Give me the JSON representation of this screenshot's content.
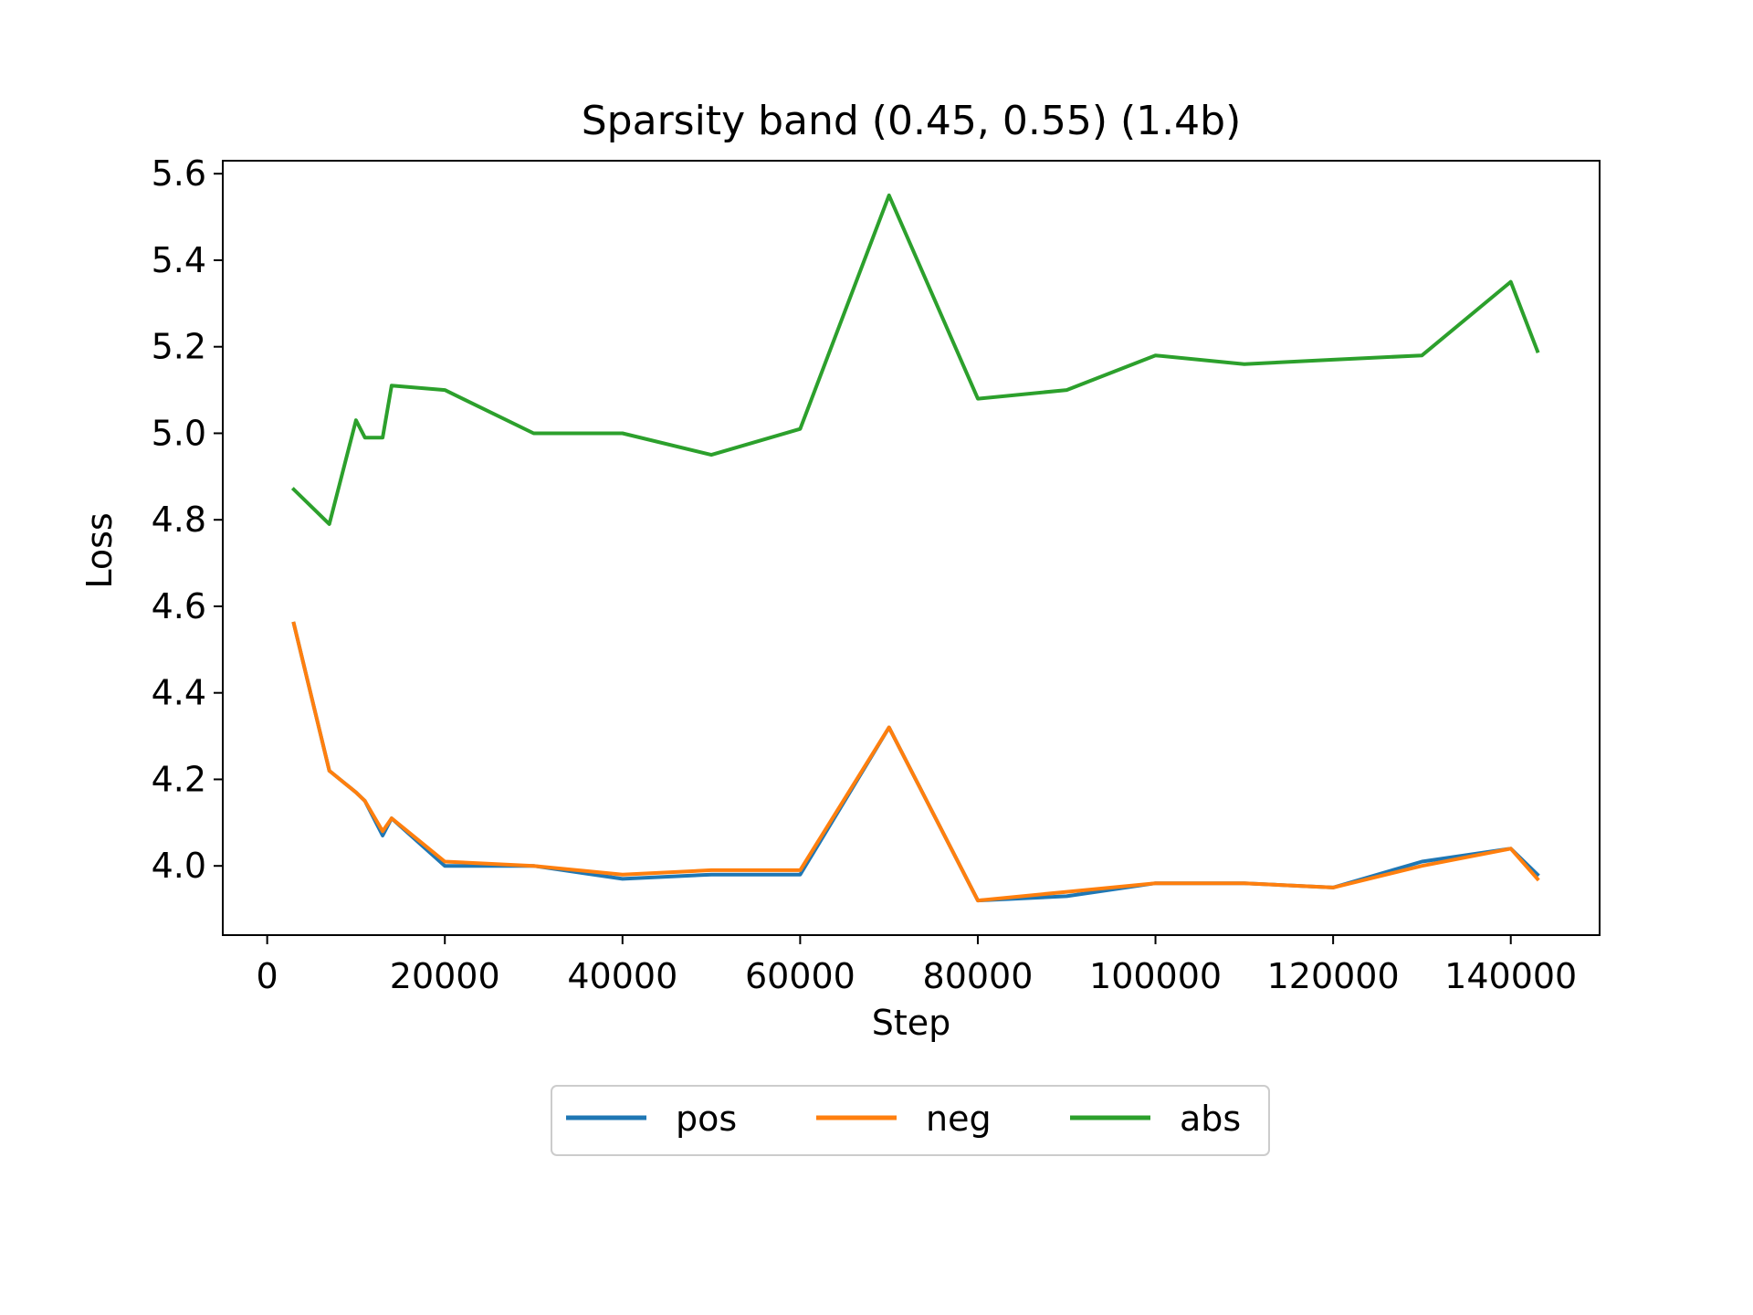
{
  "chart_data": {
    "type": "line",
    "title": "Sparsity band (0.45, 0.55) (1.4b)",
    "xlabel": "Step",
    "ylabel": "Loss",
    "xlim": [
      -5000,
      150000
    ],
    "ylim": [
      3.84,
      5.63
    ],
    "xticks": [
      0,
      20000,
      40000,
      60000,
      80000,
      100000,
      120000,
      140000
    ],
    "xtick_labels": [
      "0",
      "20000",
      "40000",
      "60000",
      "80000",
      "100000",
      "120000",
      "140000"
    ],
    "yticks": [
      4.0,
      4.2,
      4.4,
      4.6,
      4.8,
      5.0,
      5.2,
      5.4,
      5.6
    ],
    "ytick_labels": [
      "4.0",
      "4.2",
      "4.4",
      "4.6",
      "4.8",
      "5.0",
      "5.2",
      "5.4",
      "5.6"
    ],
    "grid": false,
    "legend_position": "bottom-center",
    "x": [
      3000,
      7000,
      10000,
      11000,
      13000,
      14000,
      20000,
      30000,
      40000,
      50000,
      60000,
      70000,
      80000,
      90000,
      100000,
      110000,
      120000,
      130000,
      140000,
      143000
    ],
    "series": [
      {
        "name": "pos",
        "color": "#1f77b4",
        "values": [
          4.56,
          4.22,
          4.17,
          4.15,
          4.07,
          4.11,
          4.0,
          4.0,
          3.97,
          3.98,
          3.98,
          4.32,
          3.92,
          3.93,
          3.96,
          3.96,
          3.95,
          4.01,
          4.04,
          3.98
        ]
      },
      {
        "name": "neg",
        "color": "#ff7f0e",
        "values": [
          4.56,
          4.22,
          4.17,
          4.15,
          4.08,
          4.11,
          4.01,
          4.0,
          3.98,
          3.99,
          3.99,
          4.32,
          3.92,
          3.94,
          3.96,
          3.96,
          3.95,
          4.0,
          4.04,
          3.97
        ]
      },
      {
        "name": "abs",
        "color": "#2ca02c",
        "values": [
          4.87,
          4.79,
          5.03,
          4.99,
          4.99,
          5.11,
          5.1,
          5.0,
          5.0,
          4.95,
          5.01,
          5.55,
          5.08,
          5.1,
          5.18,
          5.16,
          5.17,
          5.18,
          5.35,
          5.19
        ]
      }
    ]
  }
}
